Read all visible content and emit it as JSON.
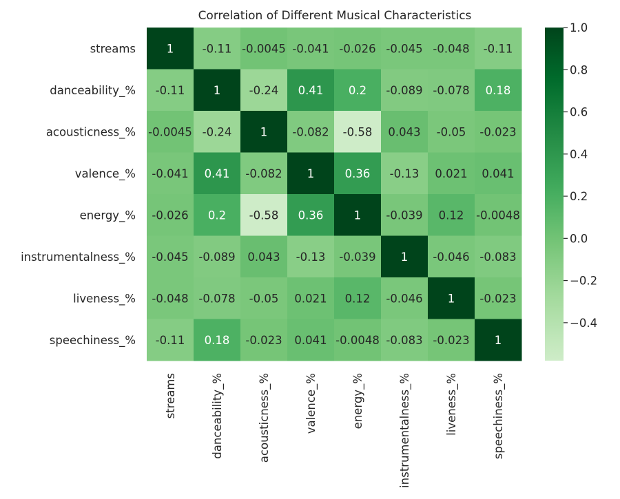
{
  "chart_data": {
    "type": "heatmap",
    "title": "Correlation of Different Musical Characteristics",
    "rows": [
      "streams",
      "danceability_%",
      "acousticness_%",
      "valence_%",
      "energy_%",
      "instrumentalness_%",
      "liveness_%",
      "speechiness_%"
    ],
    "columns": [
      "streams",
      "danceability_%",
      "acousticness_%",
      "valence_%",
      "energy_%",
      "instrumentalness_%",
      "liveness_%",
      "speechiness_%"
    ],
    "values": [
      [
        1,
        -0.11,
        -0.0045,
        -0.041,
        -0.026,
        -0.045,
        -0.048,
        -0.11
      ],
      [
        -0.11,
        1,
        -0.24,
        0.41,
        0.2,
        -0.089,
        -0.078,
        0.18
      ],
      [
        -0.0045,
        -0.24,
        1,
        -0.082,
        -0.58,
        0.043,
        -0.05,
        -0.023
      ],
      [
        -0.041,
        0.41,
        -0.082,
        1,
        0.36,
        -0.13,
        0.021,
        0.041
      ],
      [
        -0.026,
        0.2,
        -0.58,
        0.36,
        1,
        -0.039,
        0.12,
        -0.0048
      ],
      [
        -0.045,
        -0.089,
        0.043,
        -0.13,
        -0.039,
        1,
        -0.046,
        -0.083
      ],
      [
        -0.048,
        -0.078,
        -0.05,
        0.021,
        0.12,
        -0.046,
        1,
        -0.023
      ],
      [
        -0.11,
        0.18,
        -0.023,
        0.041,
        -0.0048,
        -0.083,
        -0.023,
        1
      ]
    ],
    "colorbar": {
      "range": [
        -0.58,
        1.0
      ],
      "ticks": [
        1.0,
        0.8,
        0.6,
        0.4,
        0.2,
        0.0,
        -0.2,
        -0.4
      ],
      "tick_labels": [
        "1.0",
        "0.8",
        "0.6",
        "0.4",
        "0.2",
        "0.0",
        "−0.2",
        "−0.4"
      ]
    },
    "colormap": "Greens",
    "annotations": true
  }
}
